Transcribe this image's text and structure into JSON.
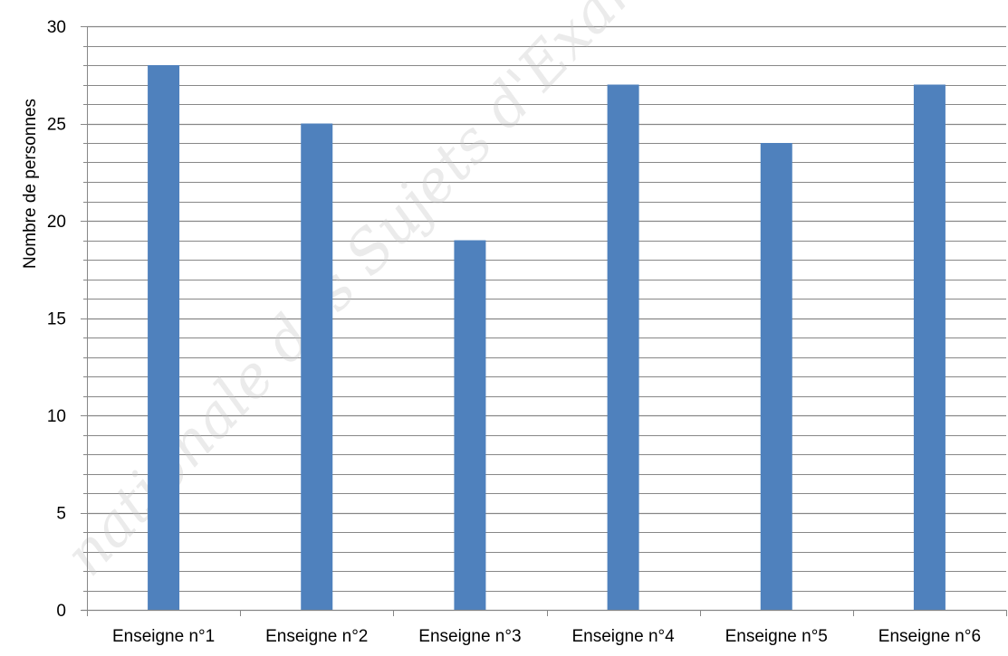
{
  "chart_data": {
    "type": "bar",
    "categories": [
      "Enseigne n°1",
      "Enseigne n°2",
      "Enseigne n°3",
      "Enseigne n°4",
      "Enseigne n°5",
      "Enseigne n°6"
    ],
    "values": [
      28,
      25,
      19,
      27,
      24,
      27
    ],
    "title": "",
    "xlabel": "",
    "ylabel": "Nombre de personnes",
    "ylim": [
      0,
      30
    ],
    "yticks": [
      0,
      5,
      10,
      15,
      20,
      25,
      30
    ],
    "minor_grid_step": 1,
    "grid": true,
    "legend": "none",
    "bar_color": "#4f81bd",
    "gridline_color": "#878787"
  },
  "watermark": {
    "text": "nationale des Sujets d'Examens de",
    "color": "#c8c8c8"
  }
}
